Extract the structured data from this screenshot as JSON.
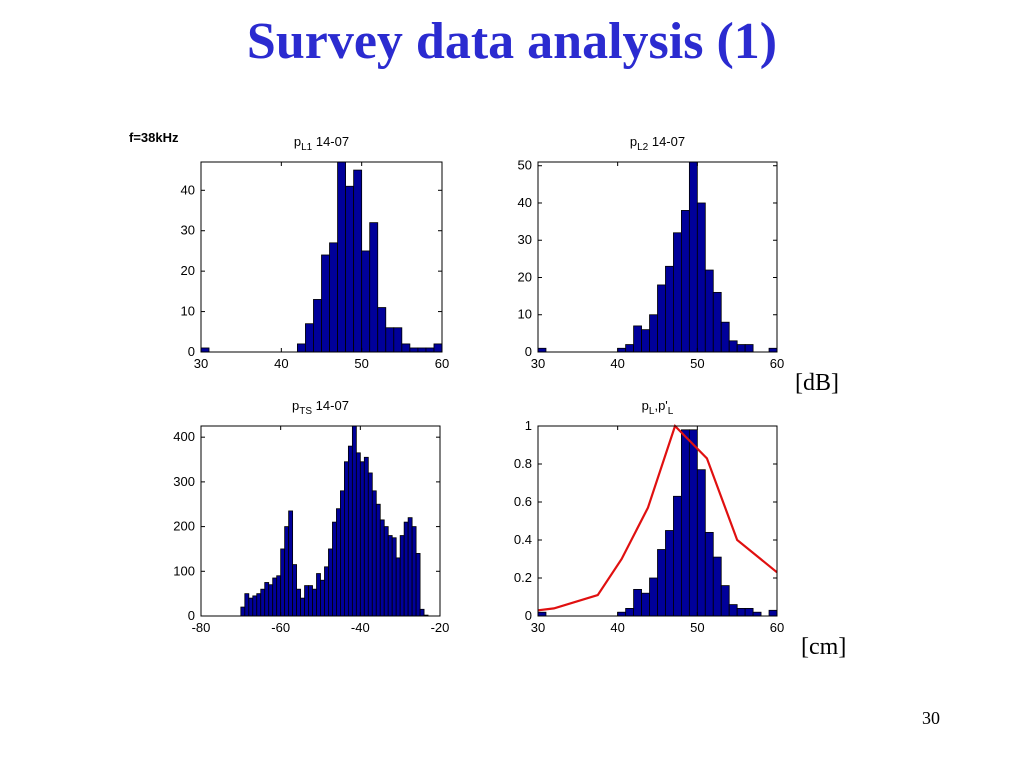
{
  "slide": {
    "title": "Survey data analysis (1)",
    "frequency_label": "f=38kHz",
    "unit_db": "[dB]",
    "unit_cm": "[cm]",
    "page_number": "30"
  },
  "colors": {
    "title": "#2b2bd0",
    "bar_fill": "#00009a",
    "bar_edge": "#000000",
    "line": "#e01010"
  },
  "chart_data": [
    {
      "id": "pl1",
      "type": "bar",
      "title_main": "p",
      "title_sub": "L1",
      "title_suffix": " 14-07",
      "xlim": [
        30,
        60
      ],
      "ylim": [
        0,
        47
      ],
      "xticks": [
        30,
        40,
        50,
        60
      ],
      "xtick_labels": [
        "30",
        "40",
        "50",
        "60"
      ],
      "yticks": [
        0,
        10,
        20,
        30,
        40
      ],
      "ytick_labels": [
        "0",
        "10",
        "20",
        "30",
        "40"
      ],
      "bin_width": 1.0,
      "x": [
        30.5,
        31.5,
        32.5,
        33.5,
        34.5,
        35.5,
        36.5,
        37.5,
        38.5,
        39.5,
        40.5,
        41.5,
        42.5,
        43.5,
        44.5,
        45.5,
        46.5,
        47.5,
        48.5,
        49.5,
        50.5,
        51.5,
        52.5,
        53.5,
        54.5,
        55.5,
        56.5,
        57.5,
        58.5,
        59.5
      ],
      "values": [
        1,
        0,
        0,
        0,
        0,
        0,
        0,
        0,
        0,
        0,
        0,
        0,
        2,
        7,
        13,
        24,
        27,
        47,
        41,
        45,
        25,
        32,
        11,
        6,
        6,
        2,
        1,
        1,
        1,
        2
      ]
    },
    {
      "id": "pl2",
      "type": "bar",
      "title_main": "p",
      "title_sub": "L2",
      "title_suffix": " 14-07",
      "xlim": [
        30,
        60
      ],
      "ylim": [
        0,
        51
      ],
      "xticks": [
        30,
        40,
        50,
        60
      ],
      "xtick_labels": [
        "30",
        "40",
        "50",
        "60"
      ],
      "yticks": [
        0,
        10,
        20,
        30,
        40,
        50
      ],
      "ytick_labels": [
        "0",
        "10",
        "20",
        "30",
        "40",
        "50"
      ],
      "bin_width": 1.0,
      "x": [
        30.5,
        31.5,
        32.5,
        33.5,
        34.5,
        35.5,
        36.5,
        37.5,
        38.5,
        39.5,
        40.5,
        41.5,
        42.5,
        43.5,
        44.5,
        45.5,
        46.5,
        47.5,
        48.5,
        49.5,
        50.5,
        51.5,
        52.5,
        53.5,
        54.5,
        55.5,
        56.5,
        57.5,
        58.5,
        59.5
      ],
      "values": [
        1,
        0,
        0,
        0,
        0,
        0,
        0,
        0,
        0,
        0,
        1,
        2,
        7,
        6,
        10,
        18,
        23,
        32,
        38,
        51,
        40,
        22,
        16,
        8,
        3,
        2,
        2,
        0,
        0,
        1
      ]
    },
    {
      "id": "pts",
      "type": "bar",
      "title_main": "p",
      "title_sub": "TS",
      "title_suffix": " 14-07",
      "xlim": [
        -80,
        -20
      ],
      "ylim": [
        0,
        425
      ],
      "xticks": [
        -80,
        -60,
        -40,
        -20
      ],
      "xtick_labels": [
        "-80",
        "-60",
        "-40",
        "-20"
      ],
      "yticks": [
        0,
        100,
        200,
        300,
        400
      ],
      "ytick_labels": [
        "0",
        "100",
        "200",
        "300",
        "400"
      ],
      "bin_width": 1.0,
      "x": [
        -69.5,
        -68.5,
        -67.5,
        -66.5,
        -65.5,
        -64.5,
        -63.5,
        -62.5,
        -61.5,
        -60.5,
        -59.5,
        -58.5,
        -57.5,
        -56.5,
        -55.5,
        -54.5,
        -53.5,
        -52.5,
        -51.5,
        -50.5,
        -49.5,
        -48.5,
        -47.5,
        -46.5,
        -45.5,
        -44.5,
        -43.5,
        -42.5,
        -41.5,
        -40.5,
        -39.5,
        -38.5,
        -37.5,
        -36.5,
        -35.5,
        -34.5,
        -33.5,
        -32.5,
        -31.5,
        -30.5,
        -29.5,
        -28.5,
        -27.5,
        -26.5,
        -25.5,
        -24.5,
        -23.5
      ],
      "values": [
        20,
        50,
        40,
        45,
        50,
        60,
        75,
        70,
        85,
        90,
        150,
        200,
        235,
        115,
        60,
        40,
        68,
        68,
        60,
        95,
        80,
        110,
        150,
        210,
        240,
        280,
        345,
        380,
        425,
        365,
        345,
        355,
        320,
        280,
        250,
        215,
        200,
        180,
        175,
        130,
        180,
        210,
        220,
        200,
        140,
        15,
        2
      ]
    },
    {
      "id": "pl-normalized",
      "type": "bar",
      "title_main": "p",
      "title_sub": "L",
      "title_mid": ",p'",
      "title_sub2": "L",
      "title_suffix": "",
      "xlim": [
        30,
        60
      ],
      "ylim": [
        0,
        1
      ],
      "xticks": [
        30,
        40,
        50,
        60
      ],
      "xtick_labels": [
        "30",
        "40",
        "50",
        "60"
      ],
      "yticks": [
        0,
        0.2,
        0.4,
        0.6,
        0.8,
        1
      ],
      "ytick_labels": [
        "0",
        "0.2",
        "0.4",
        "0.6",
        "0.8",
        "1"
      ],
      "bin_width": 1.0,
      "x": [
        30.5,
        31.5,
        32.5,
        33.5,
        34.5,
        35.5,
        36.5,
        37.5,
        38.5,
        39.5,
        40.5,
        41.5,
        42.5,
        43.5,
        44.5,
        45.5,
        46.5,
        47.5,
        48.5,
        49.5,
        50.5,
        51.5,
        52.5,
        53.5,
        54.5,
        55.5,
        56.5,
        57.5,
        58.5,
        59.5
      ],
      "values": [
        0.02,
        0,
        0,
        0,
        0,
        0,
        0,
        0,
        0,
        0,
        0.02,
        0.04,
        0.14,
        0.12,
        0.2,
        0.35,
        0.45,
        0.63,
        0.98,
        0.98,
        0.77,
        0.44,
        0.31,
        0.16,
        0.06,
        0.04,
        0.04,
        0.02,
        0,
        0.03
      ],
      "line_x": [
        30,
        32,
        37.5,
        40.5,
        43.8,
        47.2,
        51.2,
        55,
        60
      ],
      "line_y": [
        0.03,
        0.04,
        0.11,
        0.3,
        0.57,
        1.0,
        0.83,
        0.4,
        0.23
      ]
    }
  ]
}
